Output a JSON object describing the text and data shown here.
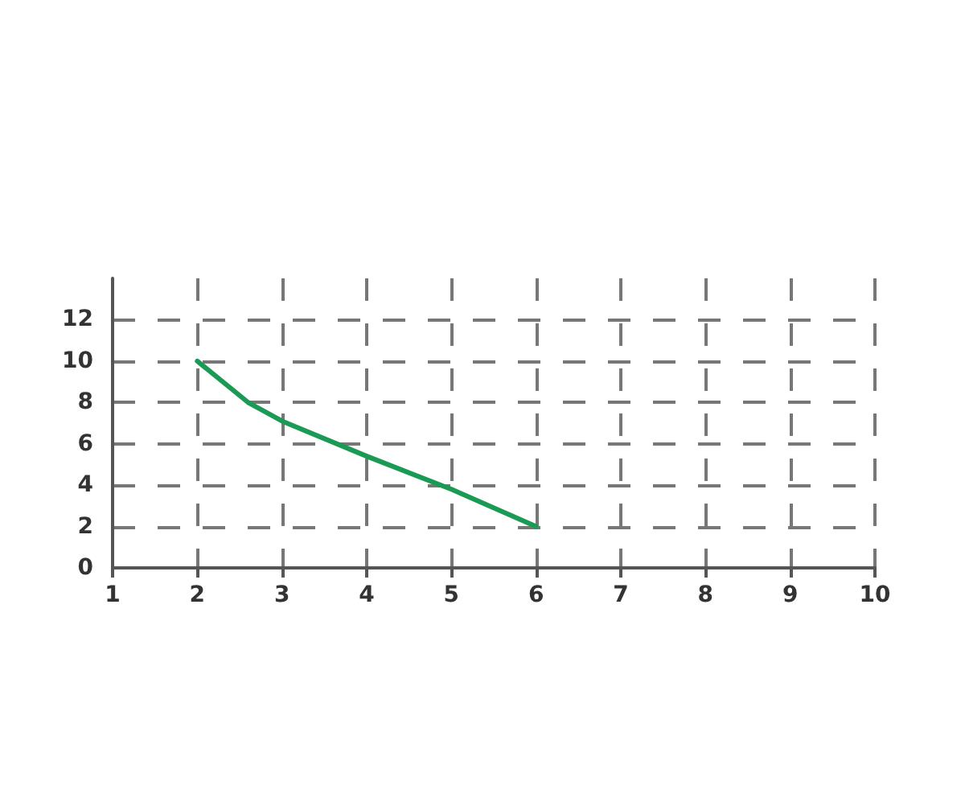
{
  "chart_data": {
    "type": "line",
    "x": [
      2,
      2.6,
      3,
      4,
      5,
      6
    ],
    "values": [
      10,
      8,
      7.1,
      5.4,
      3.8,
      2
    ],
    "color": "#1a9a55",
    "xlim": [
      1,
      10
    ],
    "ylim": [
      0,
      14
    ],
    "xticks": [
      1,
      2,
      3,
      4,
      5,
      6,
      7,
      8,
      9,
      10
    ],
    "yticks": [
      0,
      2,
      4,
      6,
      8,
      10,
      12
    ],
    "grid": true,
    "line_style": "solid",
    "marker": "none"
  }
}
